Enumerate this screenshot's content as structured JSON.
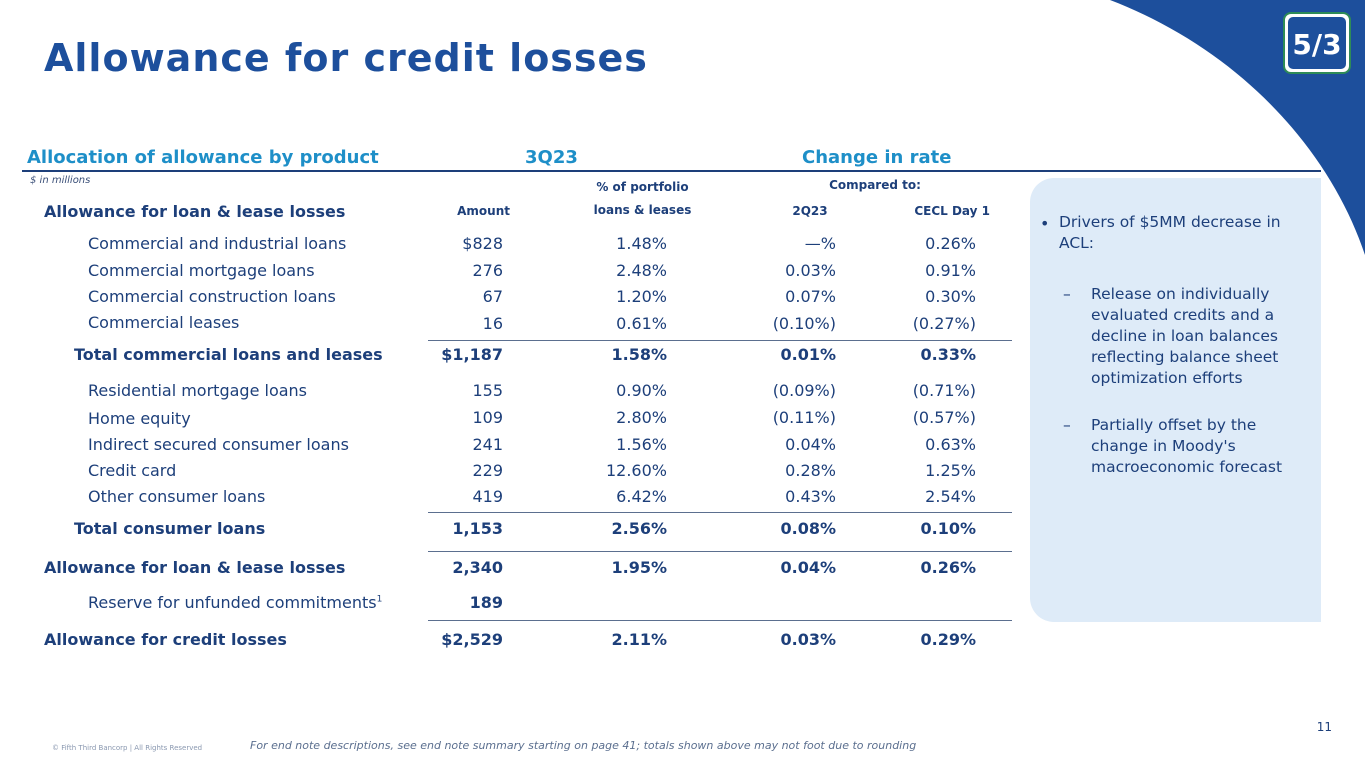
{
  "page": {
    "title": "Allowance for credit losses",
    "page_number": "11",
    "copyright": "© Fifth Third Bancorp | All Rights Reserved",
    "footnote": "For end note descriptions, see end note summary starting on page 41; totals shown above may not foot due to rounding"
  },
  "logo": {
    "text": "5/3",
    "icon": "fifth-third-logo"
  },
  "colors": {
    "title": "#1d4f9c",
    "section": "#1e8fc8",
    "text": "#1d3f7a",
    "panel": "#deebf8",
    "corner": "#1d4f9c"
  },
  "sections": {
    "allocation": "Allocation of allowance by product",
    "period": "3Q23",
    "change": "Change in rate"
  },
  "units": "$ in millions",
  "headers": {
    "label": "Allowance for loan & lease losses",
    "amount": "Amount",
    "pct_top": "% of portfolio",
    "pct_bottom": "loans & leases",
    "compared": "Compared to:",
    "q2": "2Q23",
    "cecl": "CECL Day 1"
  },
  "rows": [
    {
      "label": "Commercial and industrial loans",
      "amount": "$828",
      "pct": "1.48%",
      "q2": "—%",
      "cecl": "0.26%"
    },
    {
      "label": "Commercial mortgage loans",
      "amount": "276",
      "pct": "2.48%",
      "q2": "0.03%",
      "cecl": "0.91%"
    },
    {
      "label": "Commercial construction loans",
      "amount": "67",
      "pct": "1.20%",
      "q2": "0.07%",
      "cecl": "0.30%"
    },
    {
      "label": "Commercial leases",
      "amount": "16",
      "pct": "0.61%",
      "q2": "(0.10%)",
      "cecl": "(0.27%)"
    },
    {
      "label": "Total commercial loans and leases",
      "amount": "$1,187",
      "pct": "1.58%",
      "q2": "0.01%",
      "cecl": "0.33%"
    },
    {
      "label": "Residential mortgage loans",
      "amount": "155",
      "pct": "0.90%",
      "q2": "(0.09%)",
      "cecl": "(0.71%)"
    },
    {
      "label": "Home equity",
      "amount": "109",
      "pct": "2.80%",
      "q2": "(0.11%)",
      "cecl": "(0.57%)"
    },
    {
      "label": "Indirect secured consumer loans",
      "amount": "241",
      "pct": "1.56%",
      "q2": "0.04%",
      "cecl": "0.63%"
    },
    {
      "label": "Credit card",
      "amount": "229",
      "pct": "12.60%",
      "q2": "0.28%",
      "cecl": "1.25%"
    },
    {
      "label": "Other consumer loans",
      "amount": "419",
      "pct": "6.42%",
      "q2": "0.43%",
      "cecl": "2.54%"
    },
    {
      "label": "Total consumer loans",
      "amount": "1,153",
      "pct": "2.56%",
      "q2": "0.08%",
      "cecl": "0.10%"
    },
    {
      "label": "Allowance for loan & lease losses",
      "amount": "2,340",
      "pct": "1.95%",
      "q2": "0.04%",
      "cecl": "0.26%"
    },
    {
      "label": "Reserve for unfunded commitments",
      "amount": "189",
      "pct": "",
      "q2": "",
      "cecl": ""
    },
    {
      "label": "Allowance for credit losses",
      "amount": "$2,529",
      "pct": "2.11%",
      "q2": "0.03%",
      "cecl": "0.29%"
    }
  ],
  "reserve_superscript": "1",
  "commentary": {
    "bullet_mark": "•",
    "dash_mark": "–",
    "bullet": "Drivers of $5MM decrease in ACL:",
    "sub_items": [
      "Release on individually evaluated credits and a decline in loan balances reflecting balance sheet optimization efforts",
      "Partially offset by the change in Moody's macroeconomic forecast"
    ]
  }
}
